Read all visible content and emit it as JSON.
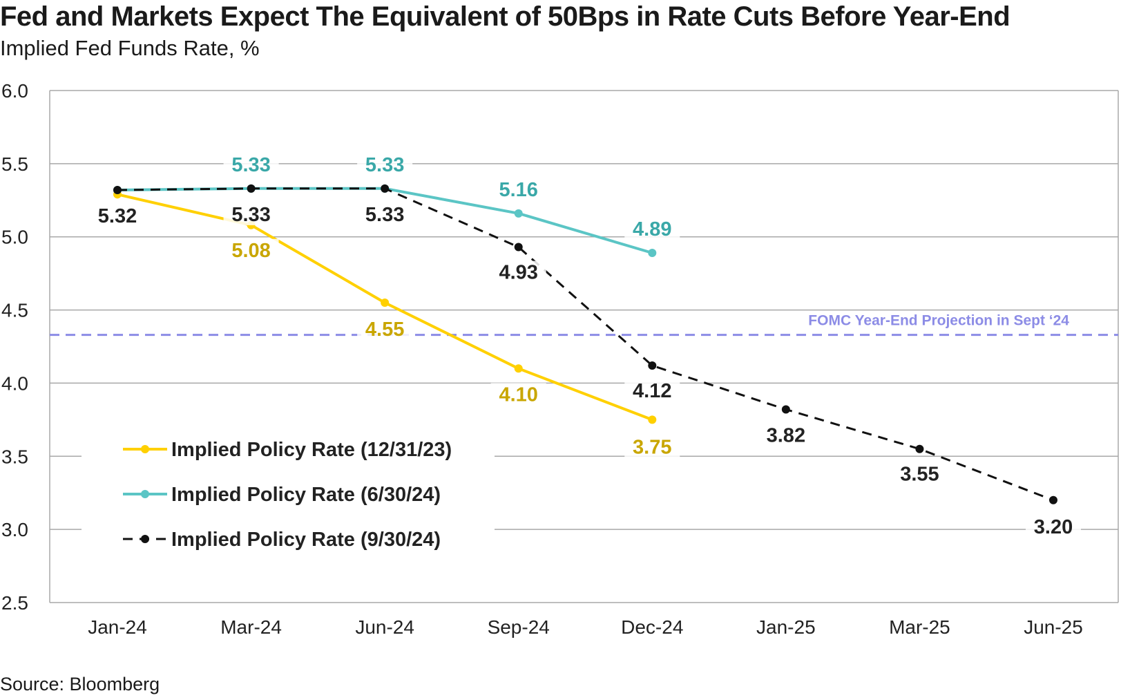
{
  "header": {
    "title": "Fed and Markets Expect The Equivalent of 50Bps in Rate Cuts Before Year-End",
    "subtitle": "Implied Fed Funds Rate, %"
  },
  "footer": {
    "source": "Source: Bloomberg"
  },
  "chart_data": {
    "type": "line",
    "title": "Fed and Markets Expect The Equivalent of 50Bps in Rate Cuts Before Year-End",
    "subtitle": "Implied Fed Funds Rate, %",
    "xlabel": "",
    "ylabel": "",
    "ylim": [
      2.5,
      6.0
    ],
    "yticks": [
      "6.0",
      "5.5",
      "5.0",
      "4.5",
      "4.0",
      "3.5",
      "3.0",
      "2.5"
    ],
    "categories": [
      "Jan-24",
      "Mar-24",
      "Jun-24",
      "Sep-24",
      "Dec-24",
      "Jan-25",
      "Mar-25",
      "Jun-25"
    ],
    "grid": true,
    "legend_position": "bottom-left",
    "series": [
      {
        "name": "Implied Policy Rate (12/31/23)",
        "color": "#FFD000",
        "label_color": "#C9A600",
        "dashed": false,
        "values": [
          5.29,
          5.08,
          4.55,
          4.1,
          3.75,
          null,
          null,
          null
        ],
        "labels": [
          "",
          "5.08",
          "4.55",
          "4.10",
          "3.75",
          "",
          "",
          ""
        ]
      },
      {
        "name": "Implied Policy Rate (6/30/24)",
        "color": "#5BC5C5",
        "label_color": "#3AA8A8",
        "dashed": false,
        "values": [
          5.32,
          5.33,
          5.33,
          5.16,
          4.89,
          null,
          null,
          null
        ],
        "labels": [
          "",
          "5.33",
          "5.33",
          "5.16",
          "4.89",
          "",
          "",
          ""
        ]
      },
      {
        "name": "Implied Policy Rate (9/30/24)",
        "color": "#111111",
        "label_color": "#222222",
        "dashed": true,
        "values": [
          5.32,
          5.33,
          5.33,
          4.93,
          4.12,
          3.82,
          3.55,
          3.2
        ],
        "labels": [
          "5.32",
          "5.33",
          "5.33",
          "4.93",
          "4.12",
          "3.82",
          "3.55",
          "3.20"
        ]
      }
    ],
    "reference_line": {
      "value": 4.33,
      "label": "FOMC Year-End Projection in Sept ‘24",
      "color": "#8C8CE6"
    }
  }
}
